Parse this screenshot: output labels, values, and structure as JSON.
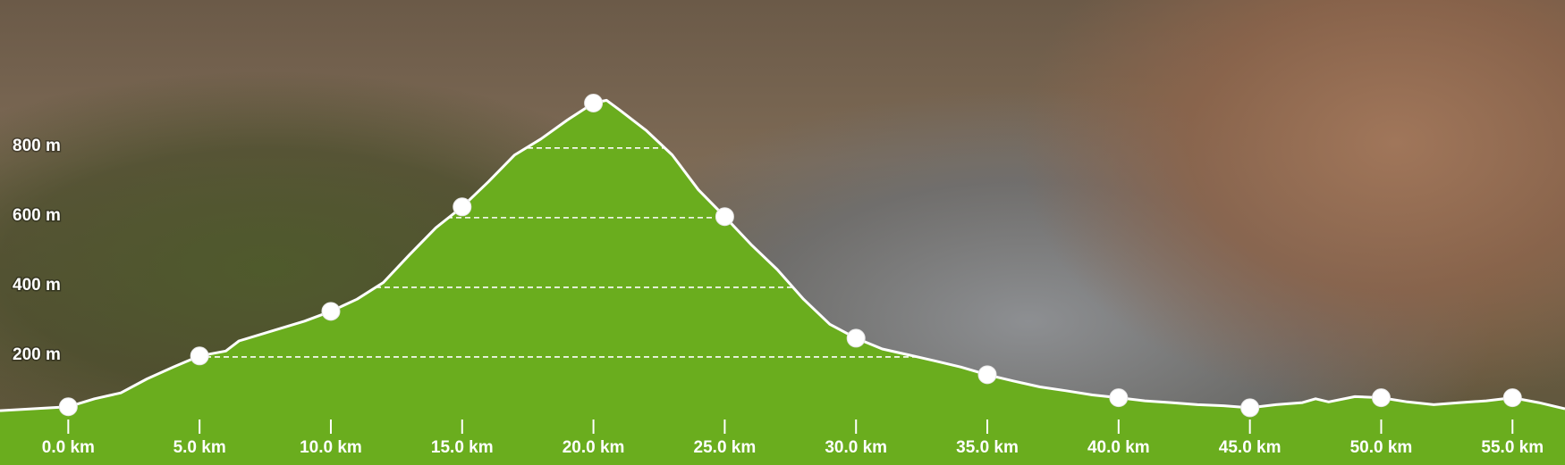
{
  "chart_data": {
    "type": "area",
    "x": [
      -2.6,
      0,
      1,
      2,
      3,
      4,
      5,
      6,
      6.5,
      8,
      9,
      10,
      11,
      12,
      13,
      14,
      15,
      16,
      17,
      18,
      19,
      20,
      20.5,
      21,
      22,
      23,
      24,
      25,
      26,
      27,
      28,
      29,
      30,
      31,
      32,
      33,
      34,
      35,
      36,
      37,
      38,
      39,
      40,
      41,
      42,
      43,
      44,
      45,
      46,
      47,
      47.5,
      48,
      49,
      50,
      51,
      52,
      53,
      54,
      55,
      56,
      57
    ],
    "values": [
      46,
      57,
      80,
      97,
      137,
      171,
      203,
      217,
      246,
      280,
      303,
      331,
      366,
      414,
      494,
      571,
      631,
      703,
      780,
      826,
      880,
      929,
      937,
      909,
      851,
      780,
      680,
      603,
      523,
      451,
      366,
      294,
      254,
      223,
      206,
      189,
      171,
      149,
      131,
      114,
      103,
      91,
      83,
      74,
      69,
      63,
      60,
      54,
      63,
      69,
      80,
      71,
      86,
      83,
      71,
      63,
      69,
      74,
      83,
      69,
      51
    ],
    "color": "#6aad1e",
    "xlim": [
      -2.6,
      57
    ],
    "ylim": [
      0,
      1225
    ],
    "xticks": [
      {
        "value": 0,
        "label": "0.0 km"
      },
      {
        "value": 5,
        "label": "5.0 km"
      },
      {
        "value": 10,
        "label": "10.0 km"
      },
      {
        "value": 15,
        "label": "15.0 km"
      },
      {
        "value": 20,
        "label": "20.0 km"
      },
      {
        "value": 25,
        "label": "25.0 km"
      },
      {
        "value": 30,
        "label": "30.0 km"
      },
      {
        "value": 35,
        "label": "35.0 km"
      },
      {
        "value": 40,
        "label": "40.0 km"
      },
      {
        "value": 45,
        "label": "45.0 km"
      },
      {
        "value": 50,
        "label": "50.0 km"
      },
      {
        "value": 55,
        "label": "55.0 km"
      }
    ],
    "yticks": [
      {
        "value": 200,
        "label": "200 m"
      },
      {
        "value": 400,
        "label": "400 m"
      },
      {
        "value": 600,
        "label": "600 m"
      },
      {
        "value": 800,
        "label": "800 m"
      }
    ],
    "grid": true
  }
}
